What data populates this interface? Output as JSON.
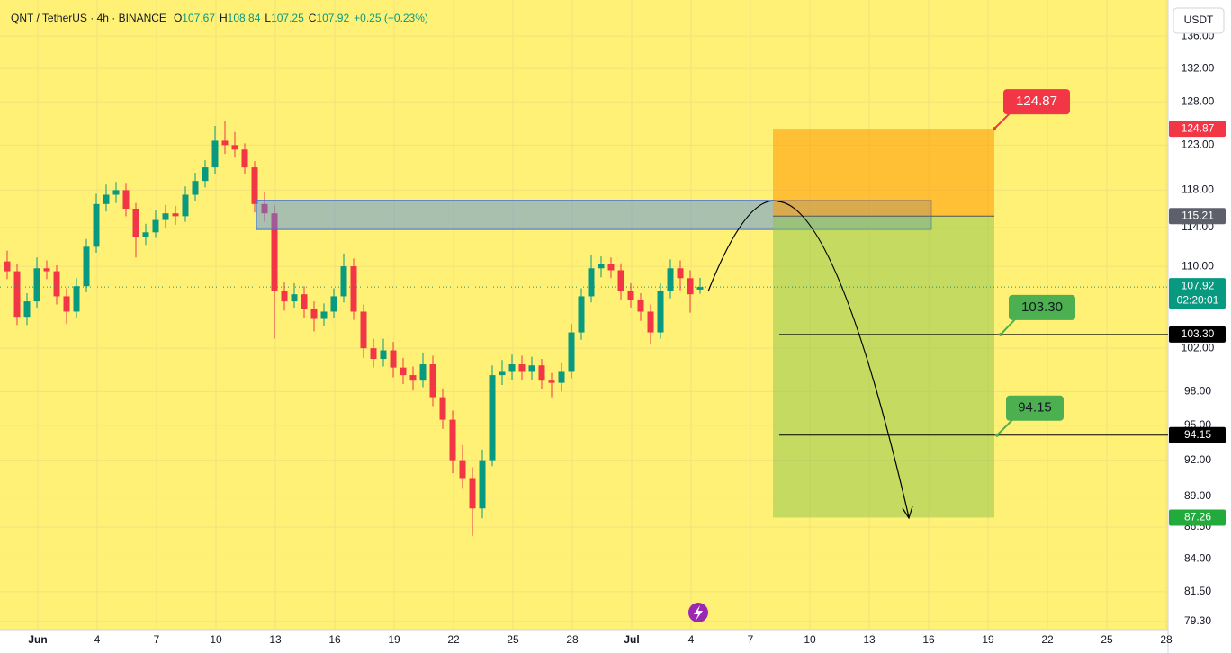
{
  "chart_data": {
    "type": "candlestick",
    "header": {
      "symbol": "QNT / TetherUS · 4h · BINANCE",
      "o_label": "O",
      "open": 107.67,
      "h_label": "H",
      "high": 108.84,
      "l_label": "L",
      "low": 107.25,
      "c_label": "C",
      "close": 107.92,
      "change": "+0.25 (+0.23%)"
    },
    "currency_button": "USDT",
    "log_scale": true,
    "grid": true,
    "ylim": [
      78.7,
      140.6
    ],
    "yticks": [
      {
        "value": 136,
        "label": "136.00"
      },
      {
        "value": 132,
        "label": "132.00"
      },
      {
        "value": 128,
        "label": "128.00"
      },
      {
        "value": 123,
        "label": "123.00"
      },
      {
        "value": 118,
        "label": "118.00"
      },
      {
        "value": 114,
        "label": "114.00"
      },
      {
        "value": 110,
        "label": "110.00"
      },
      {
        "value": 102,
        "label": "102.00"
      },
      {
        "value": 98,
        "label": "98.00"
      },
      {
        "value": 95,
        "label": "95.00"
      },
      {
        "value": 92,
        "label": "92.00"
      },
      {
        "value": 89,
        "label": "89.00"
      },
      {
        "value": 86.5,
        "label": "86.50"
      },
      {
        "value": 84,
        "label": "84.00"
      },
      {
        "value": 81.5,
        "label": "81.50"
      },
      {
        "value": 79.3,
        "label": "79.30"
      }
    ],
    "xticks": [
      "Jun",
      "4",
      "7",
      "10",
      "13",
      "16",
      "19",
      "22",
      "25",
      "28",
      "Jul",
      "4",
      "7",
      "10",
      "13",
      "16",
      "19",
      "22",
      "25",
      "28"
    ],
    "up_color": "#089981",
    "down_color": "#f23645",
    "candles": [
      [
        110.5,
        111.6,
        108.7,
        109.5
      ],
      [
        109.5,
        110.2,
        104.2,
        105.0
      ],
      [
        105.0,
        107.3,
        104.2,
        106.5
      ],
      [
        106.5,
        110.9,
        105.9,
        109.8
      ],
      [
        109.8,
        110.6,
        108.7,
        109.5
      ],
      [
        109.5,
        110.1,
        106.2,
        107.0
      ],
      [
        107.0,
        107.8,
        104.3,
        105.5
      ],
      [
        105.5,
        108.8,
        104.9,
        108.0
      ],
      [
        108.0,
        112.8,
        107.4,
        112.0
      ],
      [
        112.0,
        117.6,
        111.4,
        116.5
      ],
      [
        116.5,
        118.6,
        115.7,
        117.5
      ],
      [
        117.5,
        118.9,
        116.6,
        118.0
      ],
      [
        118.0,
        118.7,
        115.2,
        116.0
      ],
      [
        116.0,
        116.6,
        110.9,
        113.0
      ],
      [
        113.0,
        114.4,
        112.2,
        113.5
      ],
      [
        113.5,
        115.9,
        112.9,
        114.8
      ],
      [
        114.8,
        116.4,
        114.0,
        115.5
      ],
      [
        115.5,
        116.3,
        114.3,
        115.2
      ],
      [
        115.2,
        118.4,
        114.6,
        117.5
      ],
      [
        117.5,
        119.9,
        116.8,
        119.0
      ],
      [
        119.0,
        121.3,
        118.3,
        120.5
      ],
      [
        120.5,
        125.2,
        119.8,
        123.5
      ],
      [
        123.5,
        125.8,
        122.0,
        123.0
      ],
      [
        123.0,
        124.5,
        121.6,
        122.5
      ],
      [
        122.5,
        123.2,
        119.8,
        120.5
      ],
      [
        120.5,
        121.2,
        115.6,
        116.5
      ],
      [
        116.5,
        117.8,
        114.6,
        115.5
      ],
      [
        115.5,
        116.3,
        102.9,
        107.5
      ],
      [
        107.5,
        108.4,
        105.6,
        106.5
      ],
      [
        106.5,
        108.3,
        105.9,
        107.2
      ],
      [
        107.2,
        108.0,
        104.9,
        105.8
      ],
      [
        105.8,
        106.5,
        103.6,
        104.8
      ],
      [
        104.8,
        106.3,
        104.1,
        105.5
      ],
      [
        105.5,
        107.8,
        104.9,
        107.0
      ],
      [
        107.0,
        111.3,
        106.4,
        110.0
      ],
      [
        110.0,
        110.8,
        104.7,
        105.5
      ],
      [
        105.5,
        106.2,
        101.1,
        102.0
      ],
      [
        102.0,
        102.9,
        100.2,
        101.0
      ],
      [
        101.0,
        102.9,
        100.3,
        101.8
      ],
      [
        101.8,
        102.6,
        99.3,
        100.2
      ],
      [
        100.2,
        101.1,
        98.7,
        99.5
      ],
      [
        99.5,
        100.3,
        98.1,
        99.0
      ],
      [
        99.0,
        101.6,
        98.4,
        100.5
      ],
      [
        100.5,
        101.3,
        96.7,
        97.5
      ],
      [
        97.5,
        98.3,
        94.7,
        95.5
      ],
      [
        95.5,
        96.3,
        90.9,
        92.0
      ],
      [
        92.0,
        93.3,
        89.6,
        90.5
      ],
      [
        90.5,
        91.4,
        85.8,
        88.0
      ],
      [
        88.0,
        92.9,
        87.2,
        92.0
      ],
      [
        92.0,
        100.4,
        91.5,
        99.5
      ],
      [
        99.5,
        100.9,
        98.6,
        99.8
      ],
      [
        99.8,
        101.4,
        99.0,
        100.5
      ],
      [
        100.5,
        101.3,
        99.0,
        99.8
      ],
      [
        99.8,
        101.2,
        99.1,
        100.4
      ],
      [
        100.4,
        101.0,
        98.2,
        99.0
      ],
      [
        99.0,
        99.7,
        97.5,
        98.8
      ],
      [
        98.8,
        100.6,
        98.0,
        99.8
      ],
      [
        99.8,
        104.3,
        99.2,
        103.5
      ],
      [
        103.5,
        107.8,
        102.8,
        107.0
      ],
      [
        107.0,
        111.2,
        106.4,
        109.8
      ],
      [
        109.8,
        111.0,
        108.9,
        110.2
      ],
      [
        110.2,
        110.9,
        108.8,
        109.6
      ],
      [
        109.6,
        110.3,
        106.7,
        107.5
      ],
      [
        107.5,
        108.3,
        105.9,
        106.6
      ],
      [
        106.6,
        107.3,
        104.6,
        105.5
      ],
      [
        105.5,
        106.2,
        102.4,
        103.5
      ],
      [
        103.5,
        108.3,
        102.9,
        107.5
      ],
      [
        107.5,
        110.7,
        106.8,
        109.8
      ],
      [
        109.8,
        110.6,
        107.6,
        108.8
      ],
      [
        108.8,
        109.6,
        105.4,
        107.2
      ],
      [
        107.67,
        108.84,
        107.25,
        107.92
      ]
    ],
    "current_price": 107.92,
    "countdown": "02:20:01",
    "zone": [
      113.8,
      116.9
    ],
    "stop_loss": 124.87,
    "entry": 115.21,
    "target_1": {
      "value": 103.3,
      "label": "103.30"
    },
    "target_2": 94.15,
    "target_3": 87.26
  }
}
